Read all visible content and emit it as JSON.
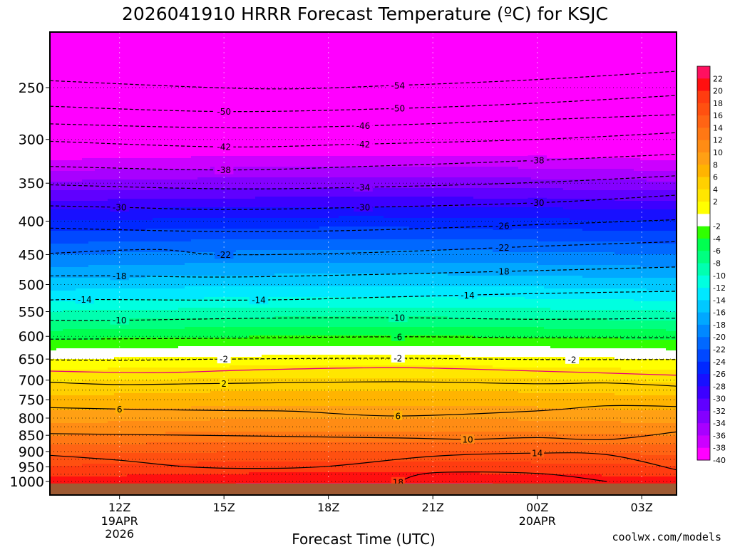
{
  "title": "2026041910 HRRR Forecast Temperature (ºC) for KSJC",
  "credit": "coolwx.com/models",
  "colors": {
    "credit": "#e83c3c",
    "frame": "#000000",
    "ground": "#9e5a33"
  },
  "chart_data": {
    "type": "heatmap",
    "title": "2026041910 HRRR Forecast Temperature (ºC) for KSJC",
    "xlabel": "Forecast Time (UTC)",
    "ylabel": "",
    "x_range_hours": [
      10,
      28
    ],
    "y_range_hpa": [
      200,
      1020
    ],
    "y_scale": "log",
    "grid": "dotted horizontal lines at pressure levels",
    "x_ticks": [
      {
        "hour": 12,
        "label": "12Z",
        "sub": [
          "19APR",
          "2026"
        ]
      },
      {
        "hour": 15,
        "label": "15Z",
        "sub": []
      },
      {
        "hour": 18,
        "label": "18Z",
        "sub": []
      },
      {
        "hour": 21,
        "label": "21Z",
        "sub": []
      },
      {
        "hour": 24,
        "label": "00Z",
        "sub": [
          "20APR"
        ]
      },
      {
        "hour": 27,
        "label": "03Z",
        "sub": []
      }
    ],
    "y_ticks": [
      250,
      300,
      350,
      400,
      450,
      500,
      550,
      600,
      650,
      700,
      750,
      800,
      850,
      900,
      950,
      1000
    ],
    "grid_levels": [
      250,
      300,
      350,
      400,
      450,
      500,
      550,
      600,
      650,
      700,
      725,
      750,
      775,
      800,
      825,
      850,
      875,
      900,
      925,
      950,
      975,
      1000
    ],
    "surface_pressure_hpa": 1007,
    "colorbar": {
      "labels": [
        "22",
        "20",
        "18",
        "16",
        "14",
        "12",
        "10",
        "8",
        "6",
        "4",
        "2",
        "-2",
        "-4",
        "-6",
        "-8",
        "-10",
        "-12",
        "-14",
        "-16",
        "-18",
        "-20",
        "-22",
        "-24",
        "-26",
        "-28",
        "-30",
        "-32",
        "-34",
        "-36",
        "-38",
        "-40"
      ],
      "levels": [
        22,
        20,
        18,
        16,
        14,
        12,
        10,
        8,
        6,
        4,
        2,
        0,
        -2,
        -4,
        -6,
        -8,
        -10,
        -12,
        -14,
        -16,
        -18,
        -20,
        -22,
        -24,
        -26,
        -28,
        -30,
        -32,
        -34,
        -36,
        -38,
        -40,
        -42
      ],
      "colors": [
        "#ff1060",
        "#ff1010",
        "#ff3c10",
        "#ff5010",
        "#ff6414",
        "#ff7814",
        "#ff8c14",
        "#ffa014",
        "#ffb400",
        "#ffd000",
        "#ffe600",
        "#ffff00",
        "#ffffff",
        "#30ff00",
        "#00ff50",
        "#00ff80",
        "#00ffb0",
        "#00ffe0",
        "#00e8ff",
        "#00c8ff",
        "#00a8ff",
        "#0088ff",
        "#0068ff",
        "#0048ff",
        "#0028ff",
        "#1810ff",
        "#3c00ff",
        "#6000ff",
        "#8400ff",
        "#a800ff",
        "#cc00ff",
        "#ff00ff"
      ]
    },
    "contours": [
      {
        "value": "-54",
        "style": "dashed",
        "p_at_hour": [
          [
            10,
            244
          ],
          [
            16,
            251
          ],
          [
            20,
            248
          ],
          [
            24,
            243
          ],
          [
            28,
            236
          ]
        ],
        "labels": [
          {
            "hour": 20,
            "text": "-54"
          }
        ]
      },
      {
        "value": "-50",
        "style": "dashed",
        "p_at_hour": [
          [
            10,
            267
          ],
          [
            15,
            272
          ],
          [
            20,
            269
          ],
          [
            24,
            264
          ],
          [
            28,
            257
          ]
        ],
        "labels": [
          {
            "hour": 15,
            "text": "-50"
          },
          {
            "hour": 20,
            "text": "-50"
          }
        ]
      },
      {
        "value": "-46",
        "style": "dashed",
        "p_at_hour": [
          [
            10,
            284
          ],
          [
            15,
            288
          ],
          [
            19,
            286
          ],
          [
            24,
            280
          ],
          [
            28,
            275
          ]
        ],
        "labels": [
          {
            "hour": 19,
            "text": "-46"
          }
        ]
      },
      {
        "value": "-42",
        "style": "dashed",
        "p_at_hour": [
          [
            10,
            302
          ],
          [
            15,
            308
          ],
          [
            19,
            305
          ],
          [
            24,
            300
          ],
          [
            28,
            293
          ]
        ],
        "labels": [
          {
            "hour": 15,
            "text": "-42"
          },
          {
            "hour": 19,
            "text": "-42"
          }
        ]
      },
      {
        "value": "-38",
        "style": "dashed",
        "p_at_hour": [
          [
            10,
            330
          ],
          [
            15,
            334
          ],
          [
            19,
            330
          ],
          [
            24,
            323
          ],
          [
            28,
            316
          ]
        ],
        "labels": [
          {
            "hour": 15,
            "text": "-38"
          },
          {
            "hour": 24,
            "text": "-38"
          }
        ]
      },
      {
        "value": "-34",
        "style": "dashed",
        "p_at_hour": [
          [
            10,
            352
          ],
          [
            15,
            357
          ],
          [
            19,
            355
          ],
          [
            24,
            349
          ],
          [
            28,
            341
          ]
        ],
        "labels": [
          {
            "hour": 19,
            "text": "-34"
          }
        ]
      },
      {
        "value": "-30",
        "style": "dashed",
        "p_at_hour": [
          [
            10,
            379
          ],
          [
            12,
            381
          ],
          [
            15,
            384
          ],
          [
            19,
            381
          ],
          [
            24,
            375
          ],
          [
            28,
            365
          ]
        ],
        "labels": [
          {
            "hour": 12,
            "text": "-30"
          },
          {
            "hour": 19,
            "text": "-30"
          },
          {
            "hour": 24,
            "text": "-30"
          }
        ]
      },
      {
        "value": "-26",
        "style": "dashed",
        "p_at_hour": [
          [
            10,
            410
          ],
          [
            15,
            415
          ],
          [
            19,
            413
          ],
          [
            24,
            405
          ],
          [
            28,
            398
          ]
        ],
        "labels": [
          {
            "hour": 23,
            "text": "-26"
          }
        ]
      },
      {
        "value": "-22",
        "style": "dashed",
        "p_at_hour": [
          [
            10,
            448
          ],
          [
            13,
            442
          ],
          [
            15,
            450
          ],
          [
            19,
            447
          ],
          [
            24,
            437
          ],
          [
            28,
            430
          ]
        ],
        "labels": [
          {
            "hour": 15,
            "text": "-22"
          },
          {
            "hour": 23,
            "text": "-22"
          }
        ]
      },
      {
        "value": "-18",
        "style": "dashed",
        "p_at_hour": [
          [
            10,
            485
          ],
          [
            12,
            485
          ],
          [
            15,
            487
          ],
          [
            19,
            483
          ],
          [
            24,
            476
          ],
          [
            28,
            470
          ]
        ],
        "labels": [
          {
            "hour": 12,
            "text": "-18"
          },
          {
            "hour": 23,
            "text": "-18"
          }
        ]
      },
      {
        "value": "-14",
        "style": "dashed",
        "p_at_hour": [
          [
            10,
            528
          ],
          [
            11,
            527
          ],
          [
            16,
            528
          ],
          [
            20,
            522
          ],
          [
            24,
            516
          ],
          [
            28,
            512
          ]
        ],
        "labels": [
          {
            "hour": 11,
            "text": "-14"
          },
          {
            "hour": 16,
            "text": "-14"
          },
          {
            "hour": 22,
            "text": "-14"
          }
        ]
      },
      {
        "value": "-10",
        "style": "dashed",
        "p_at_hour": [
          [
            10,
            567
          ],
          [
            12,
            567
          ],
          [
            16,
            563
          ],
          [
            20,
            562
          ],
          [
            24,
            565
          ],
          [
            28,
            563
          ]
        ],
        "labels": [
          {
            "hour": 12,
            "text": "-10"
          },
          {
            "hour": 20,
            "text": "-10"
          }
        ]
      },
      {
        "value": "-6",
        "style": "dashed",
        "p_at_hour": [
          [
            10,
            606
          ],
          [
            15,
            604
          ],
          [
            20,
            601
          ],
          [
            24,
            603
          ],
          [
            28,
            603
          ]
        ],
        "labels": [
          {
            "hour": 20,
            "text": "-6"
          }
        ]
      },
      {
        "value": "-2",
        "style": "dashed",
        "p_at_hour": [
          [
            10,
            652
          ],
          [
            12,
            653
          ],
          [
            15,
            650
          ],
          [
            20,
            648
          ],
          [
            24,
            651
          ],
          [
            28,
            651
          ]
        ],
        "labels": [
          {
            "hour": 15,
            "text": "-2"
          },
          {
            "hour": 20,
            "text": "-2"
          },
          {
            "hour": 25,
            "text": "-2"
          }
        ]
      },
      {
        "value": "0",
        "style": "magenta",
        "p_at_hour": [
          [
            10,
            678
          ],
          [
            13,
            682
          ],
          [
            16,
            675
          ],
          [
            20,
            670
          ],
          [
            24,
            678
          ],
          [
            28,
            688
          ]
        ],
        "labels": []
      },
      {
        "value": "2",
        "style": "solid",
        "p_at_hour": [
          [
            10,
            705
          ],
          [
            12,
            711
          ],
          [
            15,
            708
          ],
          [
            20,
            704
          ],
          [
            24,
            709
          ],
          [
            26,
            707
          ],
          [
            28,
            715
          ]
        ],
        "labels": [
          {
            "hour": 15,
            "text": "2"
          }
        ]
      },
      {
        "value": "6",
        "style": "solid",
        "p_at_hour": [
          [
            10,
            771
          ],
          [
            12,
            775
          ],
          [
            15,
            779
          ],
          [
            17,
            781
          ],
          [
            20,
            794
          ],
          [
            24,
            780
          ],
          [
            26,
            766
          ],
          [
            28,
            768
          ]
        ],
        "labels": [
          {
            "hour": 12,
            "text": "6"
          },
          {
            "hour": 20,
            "text": "6"
          }
        ]
      },
      {
        "value": "10",
        "style": "solid",
        "p_at_hour": [
          [
            10,
            845
          ],
          [
            15,
            851
          ],
          [
            20,
            858
          ],
          [
            22,
            862
          ],
          [
            24,
            857
          ],
          [
            26,
            863
          ],
          [
            28,
            840
          ]
        ],
        "labels": [
          {
            "hour": 22,
            "text": "10"
          }
        ]
      },
      {
        "value": "14",
        "style": "solid",
        "p_at_hour": [
          [
            10,
            912
          ],
          [
            12,
            928
          ],
          [
            14,
            950
          ],
          [
            16,
            955
          ],
          [
            18,
            948
          ],
          [
            21,
            915
          ],
          [
            24,
            905
          ],
          [
            26,
            910
          ],
          [
            28,
            960
          ]
        ],
        "labels": [
          {
            "hour": 24,
            "text": "14"
          }
        ]
      },
      {
        "value": "18",
        "style": "solid",
        "p_at_hour": [
          [
            20,
            1002
          ],
          [
            21,
            970
          ],
          [
            24,
            972
          ],
          [
            26,
            1000
          ]
        ],
        "labels": [
          {
            "hour": 20,
            "text": "18"
          }
        ]
      }
    ]
  }
}
